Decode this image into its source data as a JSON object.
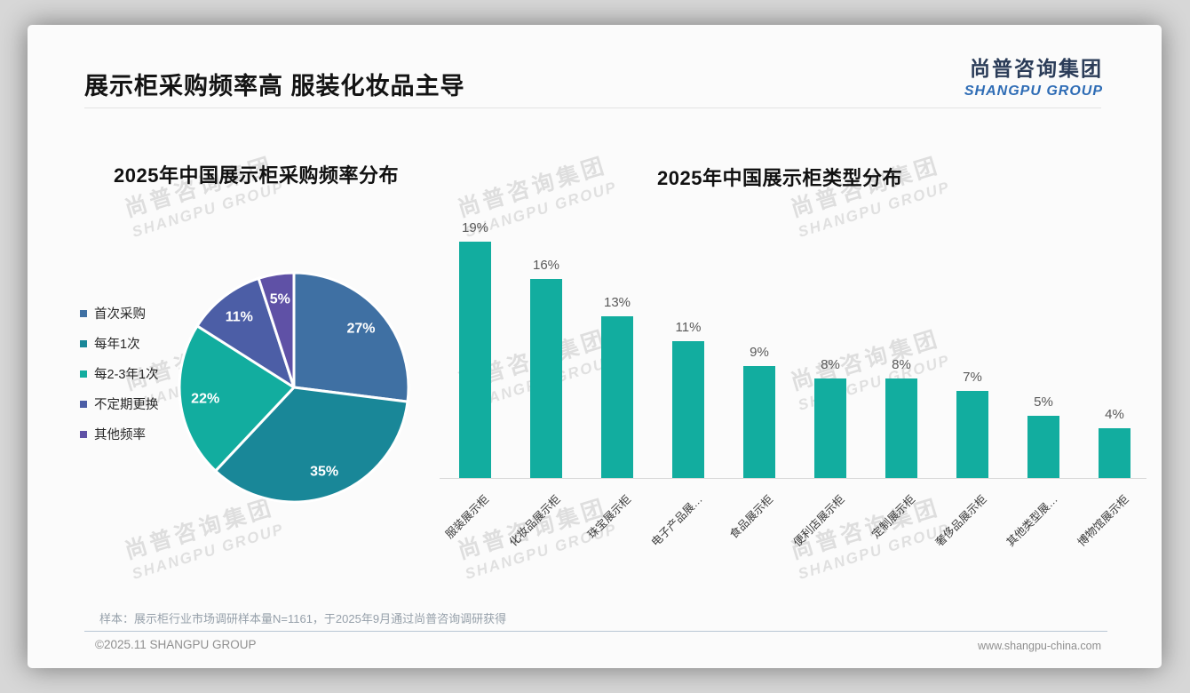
{
  "page": {
    "title": "展示柜采购频率高 服装化妆品主导",
    "logo_cn": "尚普咨询集团",
    "logo_en": "SHANGPU GROUP",
    "watermark_cn": "尚普咨询集团",
    "watermark_en": "SHANGPU GROUP",
    "footnote": "样本：展示柜行业市场调研样本量N=1161，于2025年9月通过尚普咨询调研获得",
    "copyright": "©2025.11 SHANGPU GROUP",
    "website": "www.shangpu-china.com"
  },
  "colors": {
    "logo_navy": "#2b3c58",
    "logo_blue": "#2e6cb5",
    "bar_teal": "#12ad9f",
    "pie_label_text": "#ffffff",
    "value_label_gray": "#595959"
  },
  "chart_data": [
    {
      "type": "pie",
      "title": "2025年中国展示柜采购频率分布",
      "labels": [
        "首次采购",
        "每年1次",
        "每2-3年1次",
        "不定期更换",
        "其他频率"
      ],
      "values": [
        27,
        35,
        22,
        11,
        5
      ],
      "value_suffix": "%",
      "colors": [
        "#3f70a3",
        "#198798",
        "#12ad9f",
        "#4c5ea6",
        "#5f51a6"
      ],
      "legend_position": "left",
      "start_angle_deg": 0,
      "direction": "clockwise"
    },
    {
      "type": "bar",
      "title": "2025年中国展示柜类型分布",
      "categories": [
        "服装展示柜",
        "化妆品展示柜",
        "珠宝展示柜",
        "电子产品展…",
        "食品展示柜",
        "便利店展示柜",
        "定制展示柜",
        "奢侈品展示柜",
        "其他类型展…",
        "博物馆展示柜"
      ],
      "values": [
        19,
        16,
        13,
        11,
        9,
        8,
        8,
        7,
        5,
        4
      ],
      "value_suffix": "%",
      "bar_color": "#12ad9f",
      "ylim": [
        0,
        20
      ],
      "grid": false,
      "value_labels": "above bars",
      "category_label_rotation_deg": -45
    }
  ]
}
